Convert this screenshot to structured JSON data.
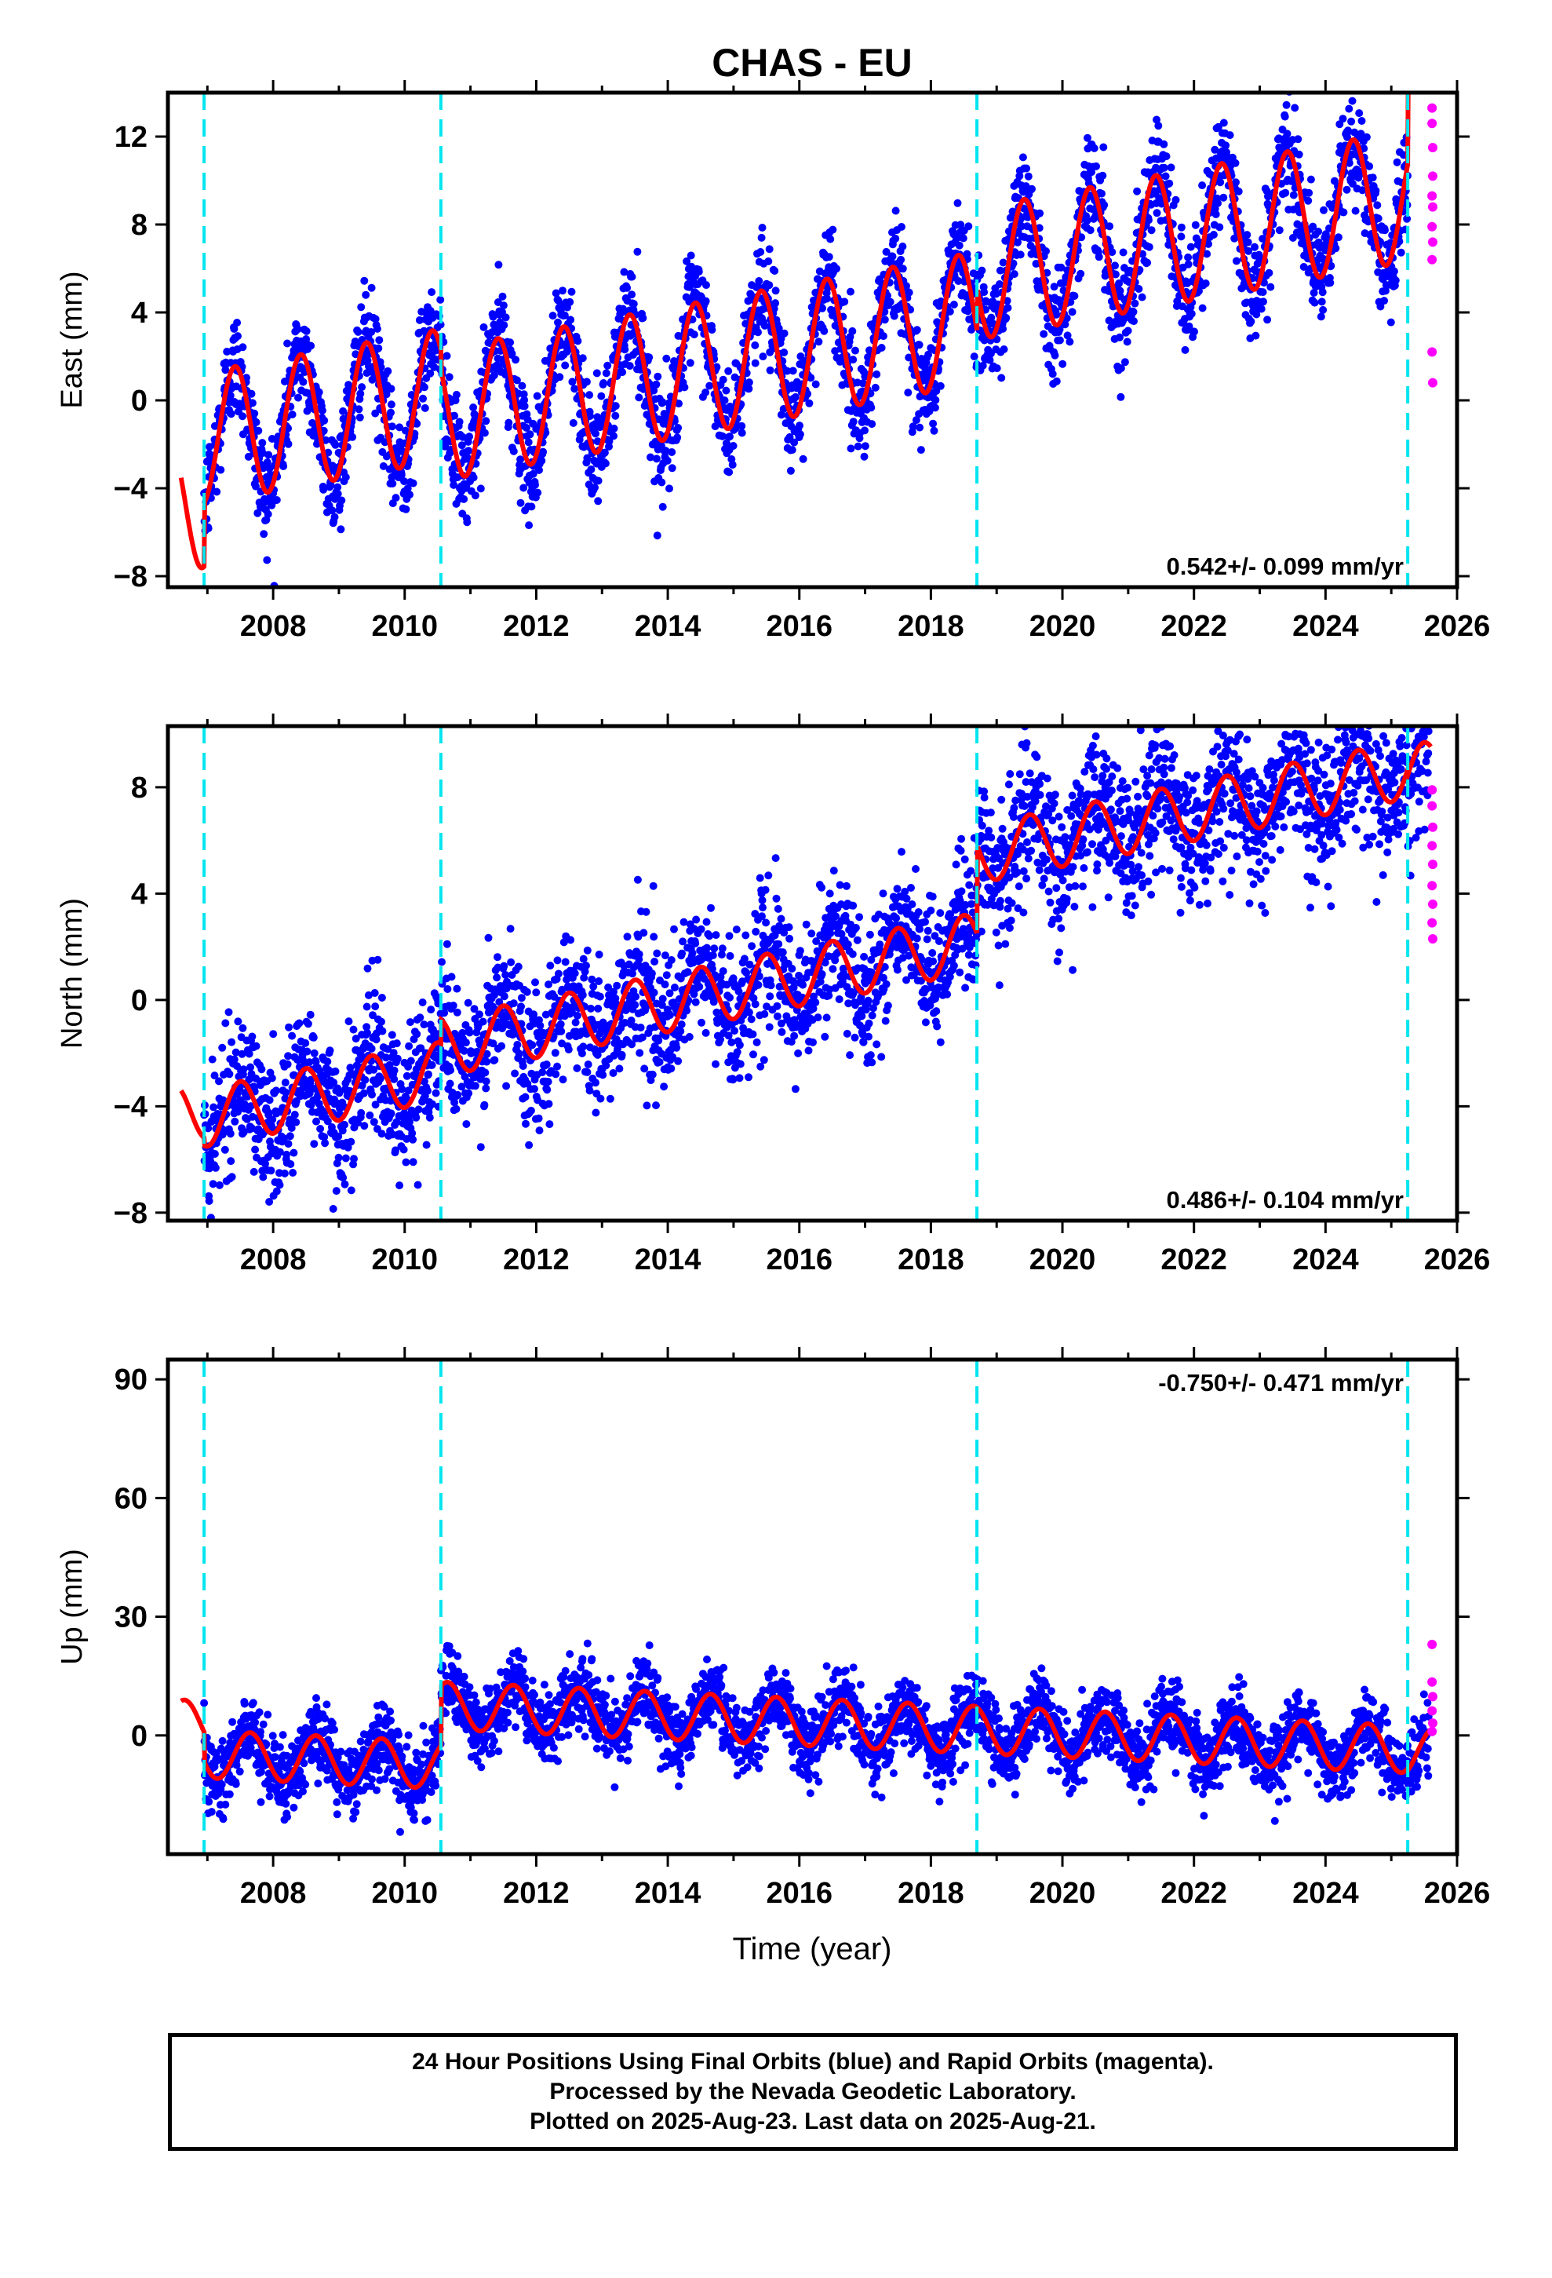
{
  "chart_data": {
    "title": "CHAS - EU",
    "xlabel": "Time (year)",
    "xlim": [
      2006.4,
      2026.0
    ],
    "x_ticks": [
      2008,
      2010,
      2012,
      2014,
      2016,
      2018,
      2020,
      2022,
      2024,
      2026
    ],
    "vertical_lines": [
      2006.95,
      2010.55,
      2018.7,
      2025.25
    ],
    "series_colors": {
      "final": "#0000ff",
      "rapid": "#ff00ff",
      "model": "#ff0000",
      "breaks": "#00e5ee"
    },
    "panels": [
      {
        "type": "scatter",
        "name": "east",
        "ylabel": "East (mm)",
        "ylim": [
          -8.5,
          14
        ],
        "y_ticks": [
          12,
          8,
          4,
          0,
          -4,
          -8
        ],
        "rate": "0.542+/- 0.099 mm/yr",
        "rate_position": "bottom-right",
        "model": {
          "start": 2006.6,
          "end": 2025.6,
          "rate_mm_per_yr": 0.542,
          "offsets": [
            {
              "from": 2006.6,
              "value": -4.8
            },
            {
              "from": 2006.95,
              "value": -1.9
            },
            {
              "from": 2010.55,
              "value": -2.8
            },
            {
              "from": 2018.7,
              "value": -0.8
            },
            {
              "from": 2025.25,
              "value": 4.2
            }
          ],
          "amplitude": 3.0,
          "peak_phase": 0.42
        },
        "scatter_sd": 1.2,
        "rapid_points": [
          [
            2025.62,
            13.3
          ],
          [
            2025.62,
            12.6
          ],
          [
            2025.63,
            11.5
          ],
          [
            2025.63,
            10.2
          ],
          [
            2025.62,
            9.3
          ],
          [
            2025.63,
            8.8
          ],
          [
            2025.62,
            7.9
          ],
          [
            2025.63,
            7.2
          ],
          [
            2025.62,
            6.4
          ],
          [
            2025.62,
            2.2
          ],
          [
            2025.63,
            0.8
          ]
        ]
      },
      {
        "type": "scatter",
        "name": "north",
        "ylabel": "North (mm)",
        "ylim": [
          -8.3,
          10.3
        ],
        "y_ticks": [
          8,
          4,
          0,
          -4,
          -8
        ],
        "rate": "0.486+/- 0.104 mm/yr",
        "rate_position": "bottom-right",
        "model": {
          "start": 2006.6,
          "end": 2025.6,
          "rate_mm_per_yr": 0.486,
          "offsets": [
            {
              "from": 2006.6,
              "value": -4.3
            },
            {
              "from": 2006.95,
              "value": -4.6
            },
            {
              "from": 2010.55,
              "value": -3.7
            },
            {
              "from": 2018.7,
              "value": -0.4
            },
            {
              "from": 2025.25,
              "value": -0.6
            }
          ],
          "amplitude": 1.1,
          "peak_phase": 0.5
        },
        "scatter_sd": 1.3,
        "rapid_points": [
          [
            2025.62,
            7.9
          ],
          [
            2025.62,
            7.3
          ],
          [
            2025.63,
            6.5
          ],
          [
            2025.62,
            5.8
          ],
          [
            2025.63,
            5.1
          ],
          [
            2025.62,
            4.3
          ],
          [
            2025.63,
            3.6
          ],
          [
            2025.62,
            2.9
          ],
          [
            2025.63,
            2.3
          ]
        ]
      },
      {
        "type": "scatter",
        "name": "up",
        "ylabel": "Up (mm)",
        "ylim": [
          -30,
          95
        ],
        "y_ticks": [
          90,
          60,
          30,
          0
        ],
        "rate": "-0.750+/- 0.471 mm/yr",
        "rate_position": "top-right",
        "model": {
          "start": 2006.6,
          "end": 2025.6,
          "rate_mm_per_yr": -0.75,
          "offsets": [
            {
              "from": 2006.6,
              "value": 3.0
            },
            {
              "from": 2006.95,
              "value": -4.5
            },
            {
              "from": 2010.55,
              "value": 10.5
            },
            {
              "from": 2018.7,
              "value": 10.5
            },
            {
              "from": 2025.25,
              "value": 10.0
            }
          ],
          "amplitude": 6.0,
          "peak_phase": 0.65
        },
        "scatter_sd": 4.5,
        "rapid_points": [
          [
            2025.62,
            23.0
          ],
          [
            2025.62,
            13.5
          ],
          [
            2025.63,
            9.8
          ],
          [
            2025.62,
            6.2
          ],
          [
            2025.63,
            3.1
          ],
          [
            2025.62,
            1.0
          ]
        ]
      }
    ]
  },
  "footer": {
    "line1": "24 Hour Positions Using Final Orbits (blue) and Rapid Orbits (magenta).",
    "line2": "Processed by the Nevada Geodetic Laboratory.",
    "line3": "Plotted on 2025-Aug-23. Last data on 2025-Aug-21."
  }
}
